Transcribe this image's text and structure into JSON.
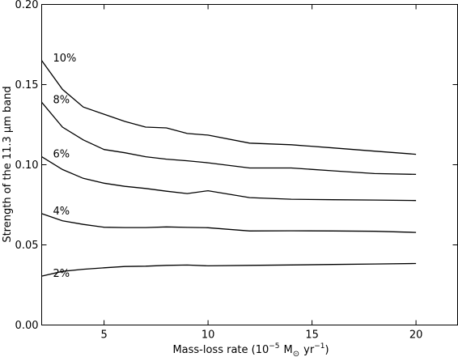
{
  "chart_data": {
    "type": "line",
    "xlabel": "Mass-loss rate (10",
    "xlabel_exp": "−5",
    "xlabel_unit": "M",
    "xlabel_sun": "⊙",
    "xlabel_tail": "yr",
    "xlabel_tail_exp": "−1",
    "xlabel_close": ")",
    "ylabel": "Strength of the 11.3 μm band",
    "xlim": [
      2,
      22
    ],
    "ylim": [
      0.0,
      0.2
    ],
    "xticks": [
      5,
      10,
      15,
      20
    ],
    "xtick_labels": [
      "5",
      "10",
      "15",
      "20"
    ],
    "yticks": [
      0.0,
      0.05,
      0.1,
      0.15,
      0.2
    ],
    "ytick_labels": [
      "0.00",
      "0.05",
      "0.10",
      "0.15",
      "0.20"
    ],
    "grid": false,
    "legend": "none",
    "series": [
      {
        "name": "10%",
        "x": [
          2,
          3,
          4,
          5,
          6,
          7,
          8,
          9,
          10,
          12,
          14,
          16,
          18,
          20
        ],
        "y": [
          0.165,
          0.147,
          0.136,
          0.1315,
          0.127,
          0.1235,
          0.123,
          0.1195,
          0.1185,
          0.1135,
          0.1125,
          0.1105,
          0.1085,
          0.1065
        ]
      },
      {
        "name": "8%",
        "x": [
          2,
          3,
          4,
          5,
          6,
          7,
          8,
          9,
          10,
          12,
          14,
          16,
          18,
          20
        ],
        "y": [
          0.139,
          0.1235,
          0.1155,
          0.1095,
          0.1075,
          0.105,
          0.1035,
          0.1025,
          0.1012,
          0.098,
          0.098,
          0.0962,
          0.0945,
          0.094
        ]
      },
      {
        "name": "6%",
        "x": [
          2,
          3,
          4,
          5,
          6,
          7,
          8,
          9,
          10,
          12,
          14,
          16,
          18,
          20
        ],
        "y": [
          0.105,
          0.097,
          0.0915,
          0.0885,
          0.0865,
          0.0852,
          0.0835,
          0.082,
          0.0838,
          0.0795,
          0.0785,
          0.0782,
          0.078,
          0.0777
        ]
      },
      {
        "name": "4%",
        "x": [
          2,
          3,
          4,
          5,
          6,
          7,
          8,
          9,
          10,
          12,
          14,
          16,
          18,
          20
        ],
        "y": [
          0.0695,
          0.065,
          0.0628,
          0.061,
          0.0608,
          0.0608,
          0.0612,
          0.0609,
          0.0607,
          0.0587,
          0.0588,
          0.0587,
          0.0585,
          0.0578
        ]
      },
      {
        "name": "2%",
        "x": [
          2,
          3,
          4,
          5,
          6,
          7,
          8,
          9,
          10,
          12,
          14,
          16,
          18,
          20
        ],
        "y": [
          0.0305,
          0.0335,
          0.0348,
          0.0357,
          0.0365,
          0.0367,
          0.0372,
          0.0374,
          0.0369,
          0.0372,
          0.0375,
          0.0378,
          0.0381,
          0.0384
        ]
      }
    ]
  }
}
